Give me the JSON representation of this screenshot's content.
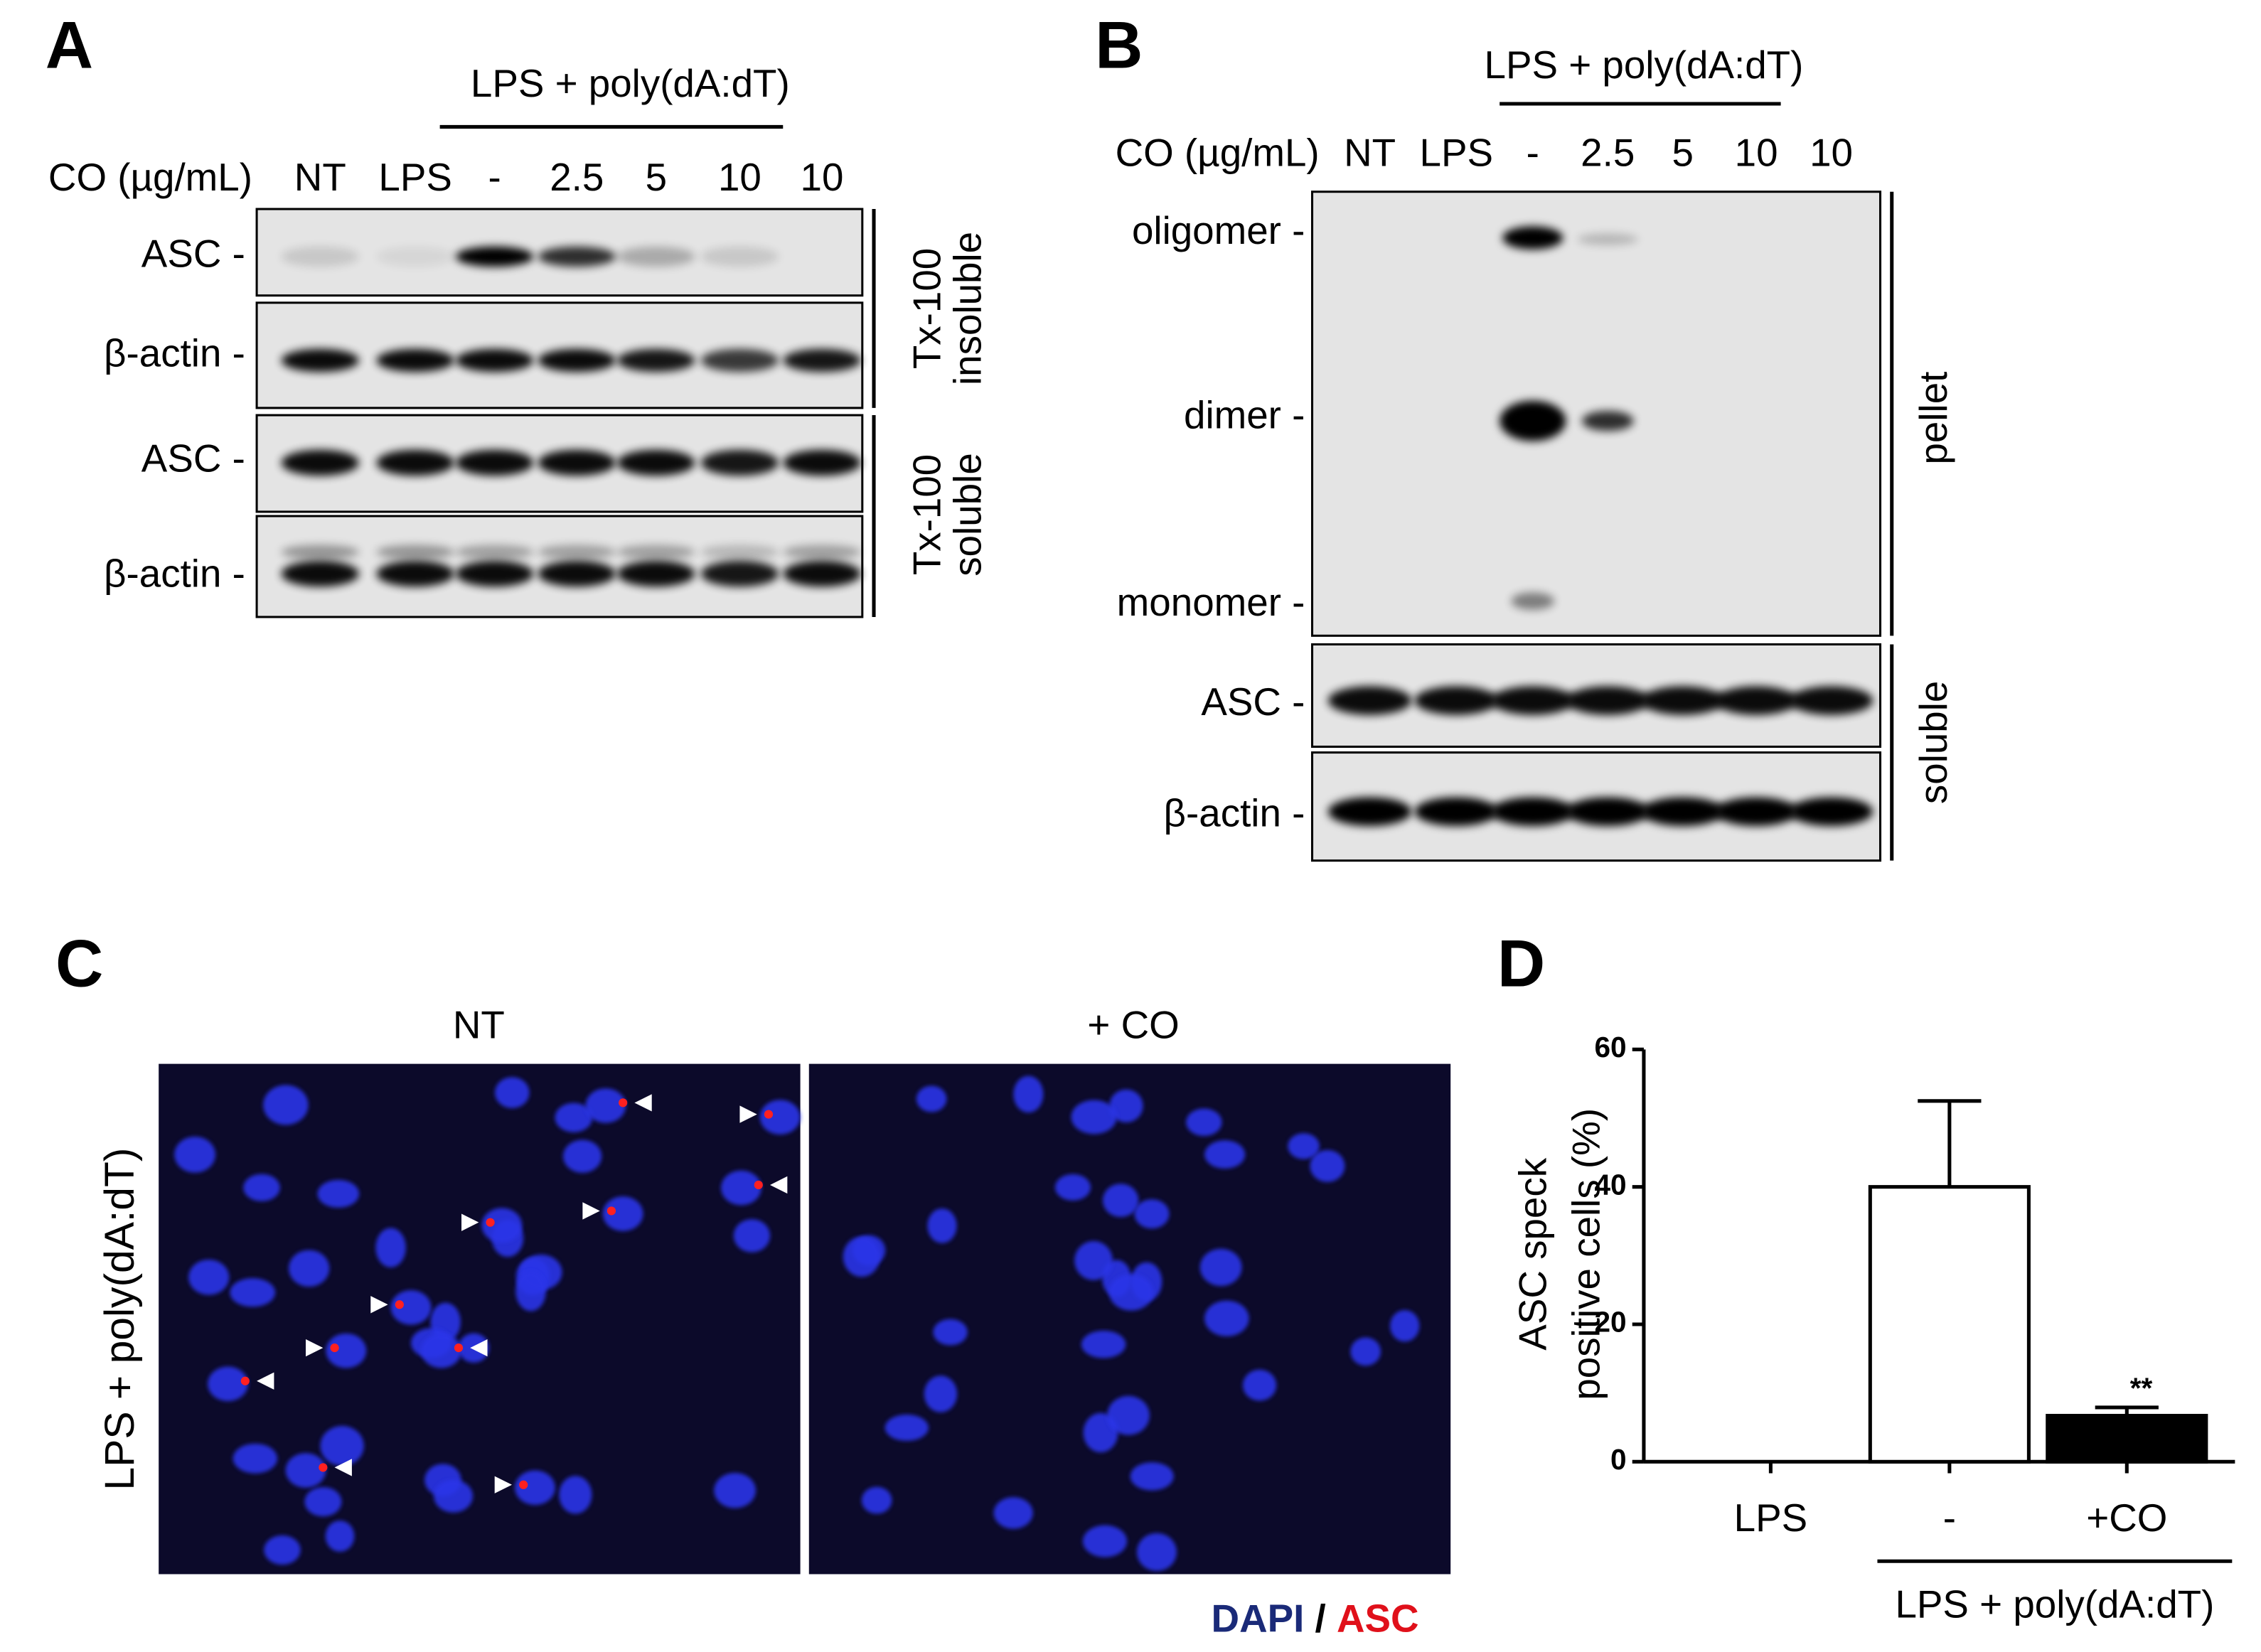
{
  "panel_a": {
    "label": "A",
    "treatment": "LPS + poly(dA:dT)",
    "dose_label": "CO (µg/mL)",
    "lanes": [
      "NT",
      "LPS",
      "-",
      "2.5",
      "5",
      "10",
      "10"
    ],
    "rows": [
      "ASC -",
      "β-actin -",
      "ASC -",
      "β-actin -"
    ],
    "groups": [
      [
        "Tx-100",
        "insoluble"
      ],
      [
        "Tx-100",
        "soluble"
      ]
    ]
  },
  "panel_b": {
    "label": "B",
    "treatment": "LPS + poly(dA:dT)",
    "dose_label": "CO (µg/mL)",
    "lanes": [
      "NT",
      "LPS",
      "-",
      "2.5",
      "5",
      "10",
      "10"
    ],
    "rows": [
      "oligomer -",
      "dimer -",
      "monomer -",
      "ASC -",
      "β-actin -"
    ],
    "groups": [
      "pellet",
      "soluble"
    ]
  },
  "panel_c": {
    "label": "C",
    "columns": [
      "NT",
      "+ CO"
    ],
    "row_label": "LPS + poly(dA:dT)",
    "stain": [
      "DAPI",
      "/",
      "ASC"
    ]
  },
  "chart_data": {
    "type": "bar",
    "label": "D",
    "y_label": [
      "ASC speck",
      "positive cells (%)"
    ],
    "categories": [
      "LPS",
      "-",
      "+CO"
    ],
    "values": [
      0,
      40,
      6.7
    ],
    "errors": [
      0,
      12.5,
      1.2
    ],
    "colors": [
      "#ffffff",
      "#ffffff",
      "#000000"
    ],
    "significance": "**",
    "group_label": "LPS + poly(dA:dT)",
    "ylim": [
      0,
      60
    ],
    "yticks": [
      0,
      20,
      40,
      60
    ]
  }
}
